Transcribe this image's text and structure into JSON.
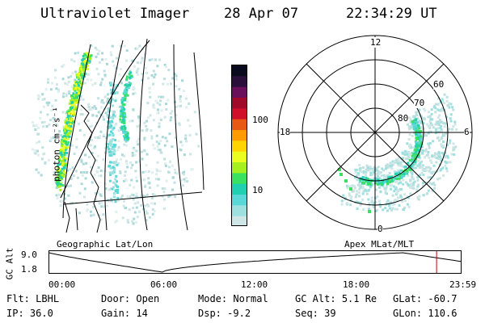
{
  "header": {
    "instrument": "Ultraviolet Imager",
    "date": "28 Apr 07",
    "time": "22:34:29 UT"
  },
  "colorbar": {
    "label": "photon cm⁻²s⁻¹",
    "ticks": [
      "100",
      "10"
    ],
    "colors": [
      "#0a0a1e",
      "#2a0f3a",
      "#6a0f5a",
      "#a00a2a",
      "#d0102a",
      "#e85a14",
      "#ff9a00",
      "#ffd400",
      "#eaff20",
      "#a6f020",
      "#3ae060",
      "#20d0b0",
      "#5ad8d8",
      "#9ee0e0",
      "#cfe6e6"
    ]
  },
  "left_panel": {
    "label": "Geographic Lat/Lon"
  },
  "right_panel": {
    "label": "Apex MLat/MLT",
    "mlt_labels": [
      "12",
      "18",
      "6",
      "0"
    ],
    "lat_labels": [
      "60",
      "70",
      "80"
    ]
  },
  "timeline": {
    "ylabel": "GC Alt",
    "yticks": [
      "9.0",
      "1.8"
    ],
    "xticks": [
      "00:00",
      "06:00",
      "12:00",
      "18:00",
      "23:59"
    ],
    "marker_hour": 22.57,
    "marker_color": "#c00000"
  },
  "footer": {
    "row1": [
      {
        "key": "Flt:",
        "value": "LBHL"
      },
      {
        "key": "Door:",
        "value": "Open"
      },
      {
        "key": "Mode:",
        "value": "Normal"
      },
      {
        "key": "GC Alt:",
        "value": "5.1 Re"
      },
      {
        "key": "GLat:",
        "value": "-60.7"
      }
    ],
    "row2": [
      {
        "key": "IP:",
        "value": "36.0"
      },
      {
        "key": "Gain:",
        "value": "14"
      },
      {
        "key": "Dsp:",
        "value": "-9.2"
      },
      {
        "key": "Seq:",
        "value": "39"
      },
      {
        "key": "GLon:",
        "value": "110.6"
      }
    ]
  }
}
